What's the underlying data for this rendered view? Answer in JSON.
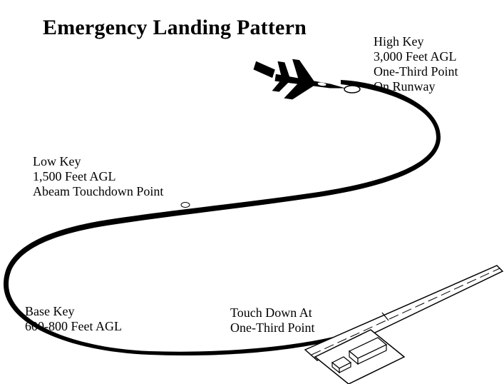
{
  "title": "Emergency Landing Pattern",
  "points": {
    "high_key": [
      "High Key",
      "3,000 Feet AGL",
      "One-Third Point",
      "On Runway"
    ],
    "low_key": [
      "Low Key",
      "1,500 Feet AGL",
      "Abeam Touchdown Point"
    ],
    "base_key": [
      "Base Key",
      "600-800 Feet AGL"
    ],
    "touchdown": [
      "Touch Down At",
      "One-Third Point"
    ]
  },
  "icons": {
    "aircraft": "jet-aircraft-icon",
    "runway": "runway-icon",
    "hangar": "hangar-icon"
  },
  "colors": {
    "ink": "#000000",
    "paper": "#ffffff"
  }
}
